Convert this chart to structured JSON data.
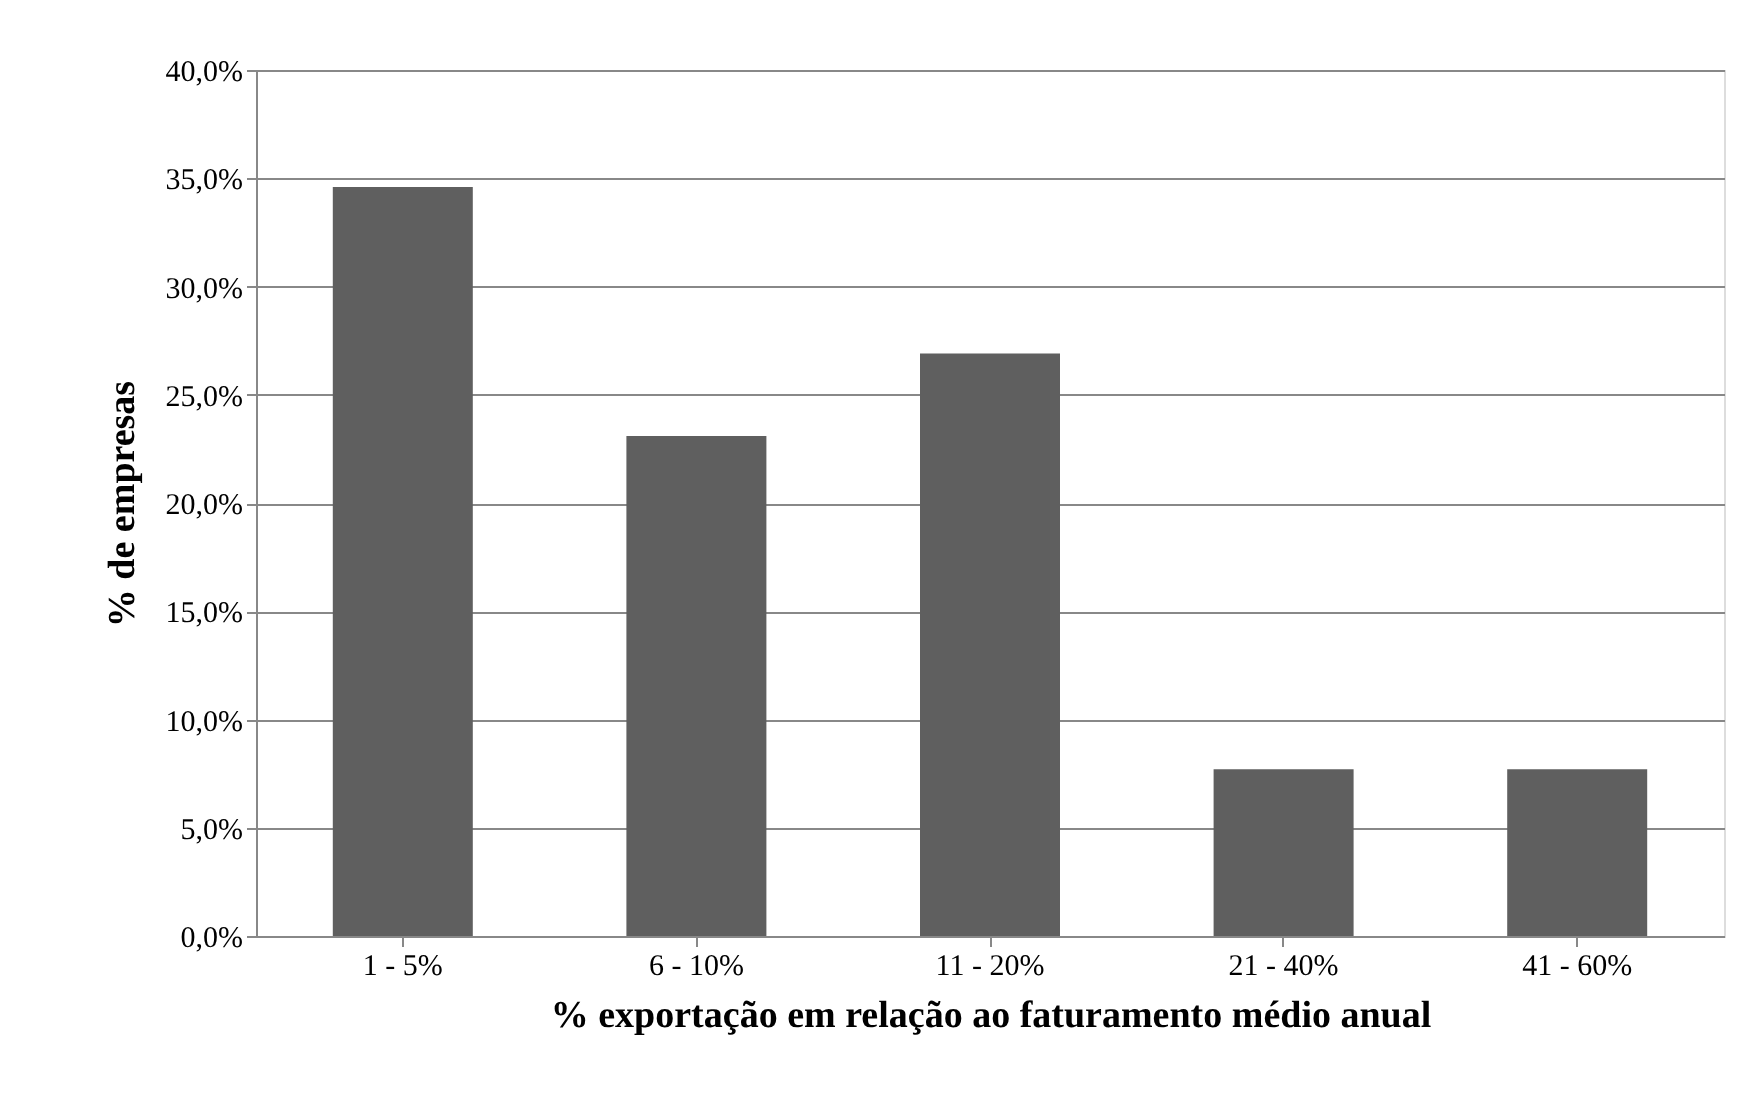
{
  "chart_data": {
    "type": "bar",
    "xlabel": "% exportação em relação ao faturamento médio anual",
    "ylabel": "% de empresas",
    "categories": [
      "1 - 5%",
      "6 - 10%",
      "11 - 20%",
      "21 - 40%",
      "41 - 60%"
    ],
    "values": [
      34.6,
      23.1,
      26.9,
      7.7,
      7.7
    ],
    "color": "#5f5f5f",
    "ylim": [
      0,
      40
    ],
    "yticks": [
      {
        "value": 0,
        "label": "0,0%"
      },
      {
        "value": 5,
        "label": "5,0%"
      },
      {
        "value": 10,
        "label": "10,0%"
      },
      {
        "value": 15,
        "label": "15,0%"
      },
      {
        "value": 20,
        "label": "20,0%"
      },
      {
        "value": 25,
        "label": "25,0%"
      },
      {
        "value": 30,
        "label": "30,0%"
      },
      {
        "value": 35,
        "label": "35,0%"
      },
      {
        "value": 40,
        "label": "40,0%"
      }
    ],
    "grid": "y"
  }
}
